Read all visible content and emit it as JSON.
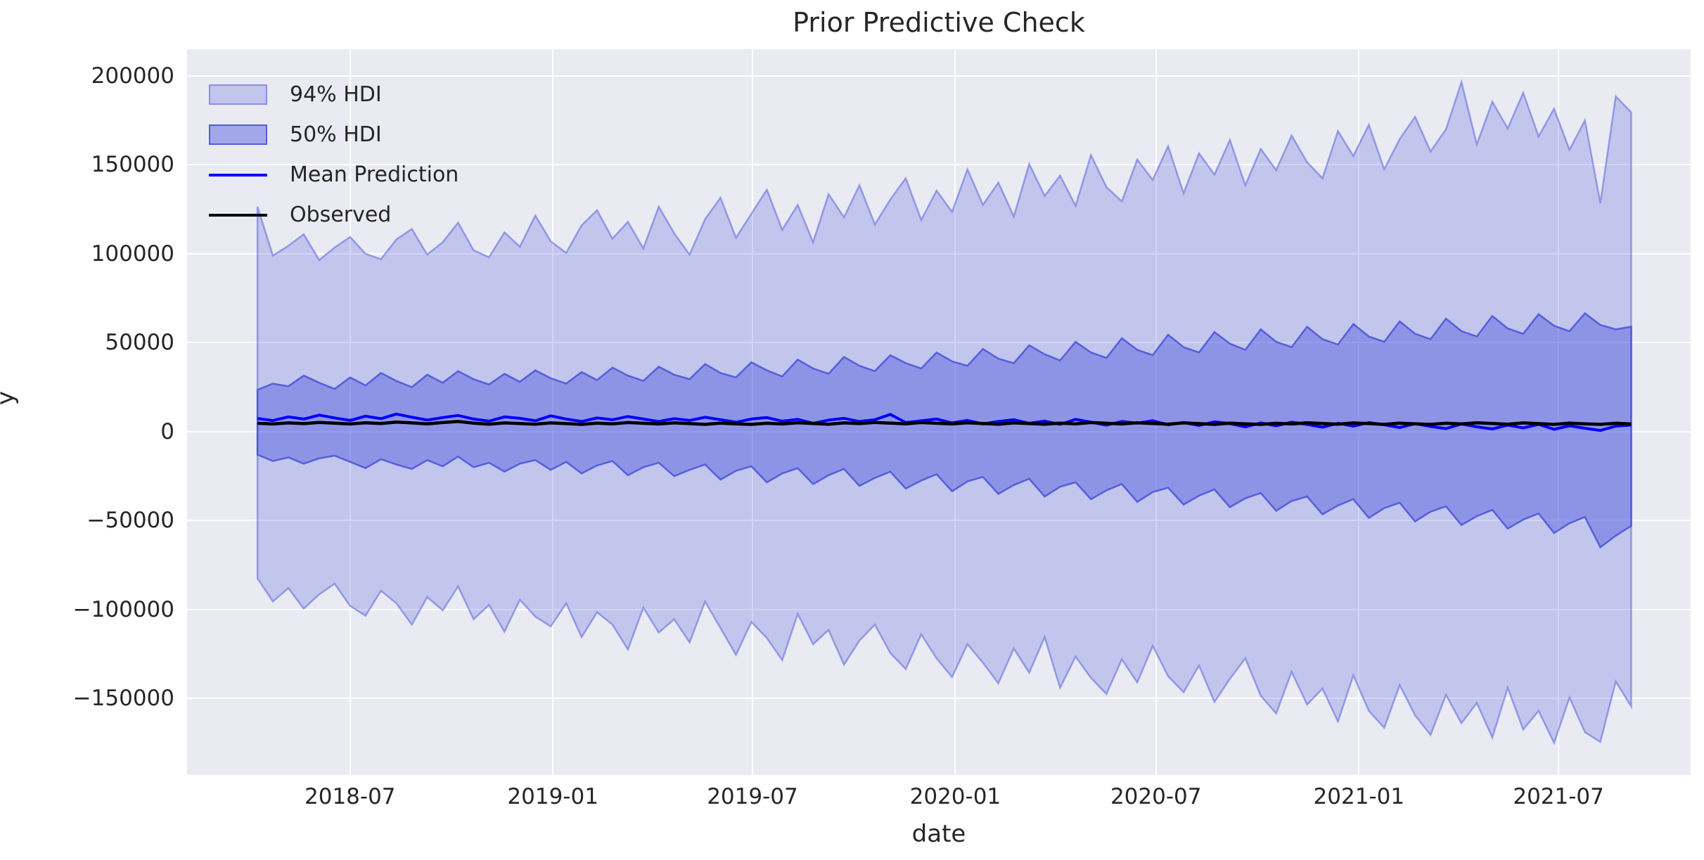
{
  "figure": {
    "title": "Prior Predictive Check",
    "xlabel": "date",
    "ylabel": "y"
  },
  "legend": [
    {
      "label": "94% HDI",
      "swatch": "band94"
    },
    {
      "label": "50% HDI",
      "swatch": "band50"
    },
    {
      "label": "Mean Prediction",
      "swatch": "line-mean"
    },
    {
      "label": "Observed",
      "swatch": "line-observed"
    }
  ],
  "colors": {
    "band": "#5963de",
    "band94_fill_opacity": 0.27,
    "band50_fill_opacity": 0.5,
    "mean_line": "#0000ff",
    "observed_line": "#000000",
    "plot_background": "#eaeaf2",
    "gridline": "#ffffff",
    "text": "#262626",
    "figure_background": "#ffffff"
  },
  "chart_data": {
    "type": "area",
    "title": "Prior Predictive Check",
    "xlabel": "date",
    "ylabel": "y",
    "x_start_date": "2018-04",
    "x_end_date": "2021-09",
    "x_step": "biweekly",
    "n_points": 90,
    "grid": true,
    "legend_position": "upper left",
    "xlim_t": [
      -4.56,
      92.85
    ],
    "ylim": [
      -193000,
      215000
    ],
    "y_ticks": [
      {
        "label": "200000",
        "v": 200000
      },
      {
        "label": "150000",
        "v": 150000
      },
      {
        "label": "100000",
        "v": 100000
      },
      {
        "label": "50000",
        "v": 50000
      },
      {
        "label": "0",
        "v": 0
      },
      {
        "label": "−50000",
        "v": -50000
      },
      {
        "label": "−100000",
        "v": -100000
      },
      {
        "label": "−150000",
        "v": -150000
      }
    ],
    "x_ticks": [
      {
        "label": "2018-07",
        "t": 6.0
      },
      {
        "label": "2019-01",
        "t": 19.14
      },
      {
        "label": "2019-07",
        "t": 32.07
      },
      {
        "label": "2020-01",
        "t": 45.21
      },
      {
        "label": "2020-07",
        "t": 58.21
      },
      {
        "label": "2021-01",
        "t": 71.36
      },
      {
        "label": "2021-07",
        "t": 84.29
      }
    ],
    "series": [
      {
        "name": "94% HDI upper",
        "role": "band94_upper",
        "values": [
          126500,
          99000,
          104500,
          111000,
          96500,
          103500,
          109500,
          100000,
          97000,
          108000,
          114000,
          99500,
          106500,
          117500,
          102000,
          98000,
          112000,
          104000,
          121500,
          107000,
          100500,
          116000,
          124500,
          108500,
          118000,
          103000,
          126500,
          111500,
          99500,
          119500,
          131500,
          109000,
          122500,
          136000,
          113500,
          127500,
          106500,
          133500,
          120500,
          138500,
          116500,
          130500,
          142500,
          119000,
          135500,
          123500,
          147500,
          127500,
          140000,
          121000,
          150500,
          132500,
          144000,
          127000,
          155500,
          137500,
          129500,
          153000,
          141500,
          160500,
          134000,
          156500,
          144500,
          164000,
          138500,
          159000,
          147000,
          166500,
          151500,
          142500,
          169000,
          155000,
          172500,
          147500,
          164500,
          177000,
          157500,
          170000,
          196500,
          161500,
          185500,
          170500,
          190500,
          166000,
          181500,
          158500,
          175000,
          128500,
          188500,
          179500
        ]
      },
      {
        "name": "94% HDI lower",
        "role": "band94_lower",
        "values": [
          -82500,
          -95500,
          -88000,
          -99500,
          -91500,
          -85500,
          -98000,
          -103500,
          -89500,
          -96500,
          -108500,
          -93000,
          -100500,
          -87000,
          -105500,
          -97500,
          -112500,
          -94500,
          -104000,
          -109500,
          -96500,
          -115500,
          -101500,
          -108500,
          -122500,
          -99000,
          -113000,
          -105500,
          -118500,
          -95500,
          -110500,
          -125500,
          -107000,
          -116000,
          -128500,
          -102500,
          -119500,
          -111500,
          -131000,
          -117500,
          -108500,
          -124500,
          -133500,
          -114000,
          -127500,
          -138000,
          -119500,
          -130000,
          -141500,
          -122000,
          -135500,
          -115500,
          -144000,
          -126500,
          -138500,
          -147500,
          -128000,
          -141000,
          -120500,
          -137500,
          -146500,
          -131500,
          -152000,
          -139000,
          -127500,
          -148500,
          -158500,
          -135000,
          -153500,
          -144500,
          -163000,
          -137000,
          -157000,
          -166500,
          -142500,
          -159500,
          -170500,
          -148000,
          -164000,
          -152500,
          -172000,
          -144000,
          -167500,
          -157000,
          -175000,
          -149500,
          -169000,
          -174500,
          -140500,
          -154500
        ]
      },
      {
        "name": "50% HDI upper",
        "role": "band50_upper",
        "values": [
          23500,
          27000,
          25500,
          31500,
          27500,
          24000,
          30500,
          26000,
          33000,
          28500,
          25000,
          32000,
          27500,
          34000,
          29500,
          26500,
          32500,
          28000,
          34500,
          30000,
          27000,
          33500,
          29000,
          36000,
          31500,
          28500,
          36500,
          32000,
          29500,
          38000,
          33000,
          30500,
          39000,
          34500,
          31000,
          40500,
          35500,
          32500,
          42000,
          37000,
          34000,
          43000,
          38500,
          35500,
          44500,
          39500,
          37000,
          46500,
          41000,
          38500,
          48500,
          43500,
          40000,
          50500,
          44500,
          41500,
          52500,
          46000,
          43000,
          54500,
          47500,
          44500,
          56000,
          49500,
          46000,
          57500,
          50500,
          47500,
          59000,
          52000,
          49000,
          60500,
          53500,
          50500,
          62000,
          55000,
          52000,
          63500,
          56500,
          53500,
          65000,
          58000,
          55000,
          66000,
          59500,
          56500,
          66500,
          60000,
          57500,
          59000
        ]
      },
      {
        "name": "50% HDI lower",
        "role": "band50_lower",
        "values": [
          -13000,
          -16500,
          -14500,
          -18000,
          -15000,
          -13500,
          -17000,
          -20500,
          -15500,
          -18500,
          -21000,
          -16000,
          -19500,
          -14000,
          -20000,
          -17500,
          -22500,
          -18000,
          -16000,
          -21500,
          -17000,
          -23500,
          -19000,
          -16500,
          -24500,
          -20000,
          -17500,
          -25000,
          -21500,
          -18500,
          -27000,
          -22000,
          -19500,
          -28500,
          -23500,
          -20500,
          -29500,
          -24500,
          -21000,
          -30500,
          -26000,
          -22500,
          -32000,
          -27500,
          -24000,
          -33500,
          -28000,
          -25500,
          -35000,
          -30000,
          -26500,
          -36500,
          -31000,
          -28500,
          -38000,
          -33000,
          -29500,
          -39500,
          -34000,
          -31500,
          -41000,
          -36000,
          -32500,
          -42500,
          -37500,
          -34500,
          -44500,
          -39000,
          -36500,
          -46500,
          -41500,
          -38000,
          -48500,
          -43000,
          -40000,
          -50500,
          -45000,
          -42000,
          -52500,
          -47500,
          -44000,
          -54500,
          -49500,
          -46000,
          -57000,
          -51500,
          -48000,
          -65000,
          -58500,
          -53000
        ]
      },
      {
        "name": "Mean Prediction",
        "role": "line_mean",
        "values": [
          7400,
          6200,
          8300,
          7100,
          9300,
          7700,
          6300,
          8700,
          7300,
          9900,
          8100,
          6500,
          7900,
          9100,
          7100,
          5900,
          8300,
          7500,
          6100,
          8900,
          7100,
          5700,
          7700,
          6700,
          8500,
          7100,
          5700,
          7300,
          6300,
          8100,
          6700,
          5300,
          7100,
          7900,
          5900,
          6900,
          4700,
          6500,
          7500,
          5700,
          6700,
          9700,
          5100,
          6100,
          7100,
          4900,
          6300,
          4300,
          5700,
          6700,
          4700,
          5900,
          4100,
          6900,
          5300,
          3700,
          5700,
          4700,
          6100,
          3900,
          5100,
          3500,
          5500,
          4500,
          2700,
          4900,
          3300,
          5300,
          4100,
          2500,
          4700,
          3100,
          5100,
          3900,
          2300,
          4500,
          2900,
          1700,
          4300,
          2700,
          1500,
          3700,
          2100,
          4100,
          1300,
          3300,
          1900,
          700,
          3100,
          3700
        ]
      },
      {
        "name": "Observed",
        "role": "line_observed",
        "values": [
          4700,
          4300,
          4900,
          4500,
          5200,
          4800,
          4300,
          5000,
          4600,
          5400,
          4900,
          4400,
          5100,
          5700,
          4800,
          4200,
          4900,
          4600,
          4200,
          4900,
          4500,
          4100,
          4800,
          4400,
          5100,
          4700,
          4300,
          4900,
          4500,
          4100,
          4800,
          4400,
          4100,
          4700,
          4300,
          5000,
          4600,
          4200,
          4900,
          4500,
          5200,
          4800,
          4400,
          5100,
          4700,
          4300,
          5000,
          4600,
          4200,
          4900,
          4500,
          4200,
          4800,
          4400,
          5100,
          4700,
          4300,
          5000,
          4600,
          4200,
          4900,
          4500,
          4100,
          4800,
          4400,
          4100,
          4700,
          4300,
          5000,
          4600,
          4200,
          4900,
          4500,
          4100,
          4800,
          4400,
          4100,
          4700,
          4300,
          5000,
          4600,
          4200,
          4900,
          4500,
          4100,
          4800,
          4400,
          4100,
          4700,
          4300
        ]
      }
    ]
  }
}
